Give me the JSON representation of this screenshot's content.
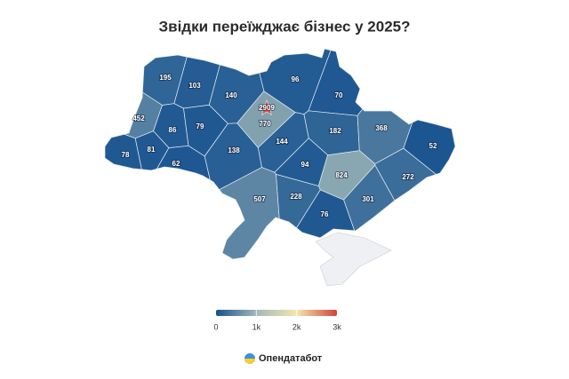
{
  "chart_data": {
    "type": "choropleth",
    "title": "Звідки переїжджає бізнес у 2025?",
    "values": [
      195,
      103,
      140,
      2909,
      770,
      96,
      70,
      452,
      86,
      79,
      144,
      182,
      368,
      52,
      78,
      81,
      62,
      138,
      94,
      824,
      272,
      507,
      228,
      301,
      76
    ],
    "colorbar": {
      "range": [
        0,
        3000
      ],
      "colors": [
        "#15518f",
        "#a2b9b8",
        "#f2e7ad",
        "#d0433e"
      ],
      "ticks": [
        0,
        {
          "value": 1000,
          "label": "1k"
        },
        {
          "value": 2000,
          "label": "2k"
        },
        {
          "value": 3000,
          "label": "3k"
        }
      ]
    },
    "no_data_color": "#eef0f3"
  },
  "brand": "Опендатабот"
}
